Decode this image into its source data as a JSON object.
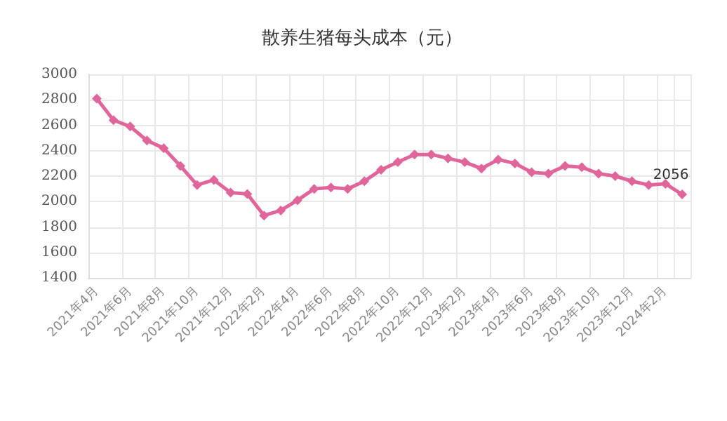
{
  "chart_data": {
    "type": "line",
    "title": "散养生猪每头成本（元）",
    "categories": [
      "2021年4月",
      null,
      "2021年6月",
      null,
      "2021年8月",
      null,
      "2021年10月",
      null,
      "2021年12月",
      null,
      "2022年2月",
      null,
      "2022年4月",
      null,
      "2022年6月",
      null,
      "2022年8月",
      null,
      "2022年10月",
      null,
      "2022年12月",
      null,
      "2023年2月",
      null,
      "2023年4月",
      null,
      "2023年6月",
      null,
      "2023年8月",
      null,
      "2023年10月",
      null,
      "2023年12月",
      null,
      "2024年2月",
      null
    ],
    "series": [
      {
        "color": "#e0659a",
        "values": [
          2810,
          2640,
          2590,
          2480,
          2420,
          2280,
          2130,
          2170,
          2070,
          2060,
          1890,
          1930,
          2010,
          2100,
          2110,
          2100,
          2160,
          2250,
          2310,
          2370,
          2370,
          2340,
          2310,
          2260,
          2330,
          2300,
          2230,
          2220,
          2280,
          2270,
          2220,
          2200,
          2160,
          2130,
          2140,
          2056
        ],
        "value_labels": [
          null,
          null,
          null,
          null,
          null,
          null,
          null,
          null,
          null,
          null,
          null,
          null,
          null,
          null,
          null,
          null,
          null,
          null,
          null,
          null,
          null,
          null,
          null,
          null,
          null,
          null,
          null,
          null,
          null,
          null,
          null,
          null,
          null,
          null,
          null,
          "2056"
        ]
      }
    ],
    "ylim": [
      1400,
      3000
    ],
    "yticks": [
      1400,
      1600,
      1800,
      2000,
      2200,
      2400,
      2600,
      2800,
      3000
    ],
    "grid": true,
    "marker": "diamond",
    "line_style": "solid"
  }
}
